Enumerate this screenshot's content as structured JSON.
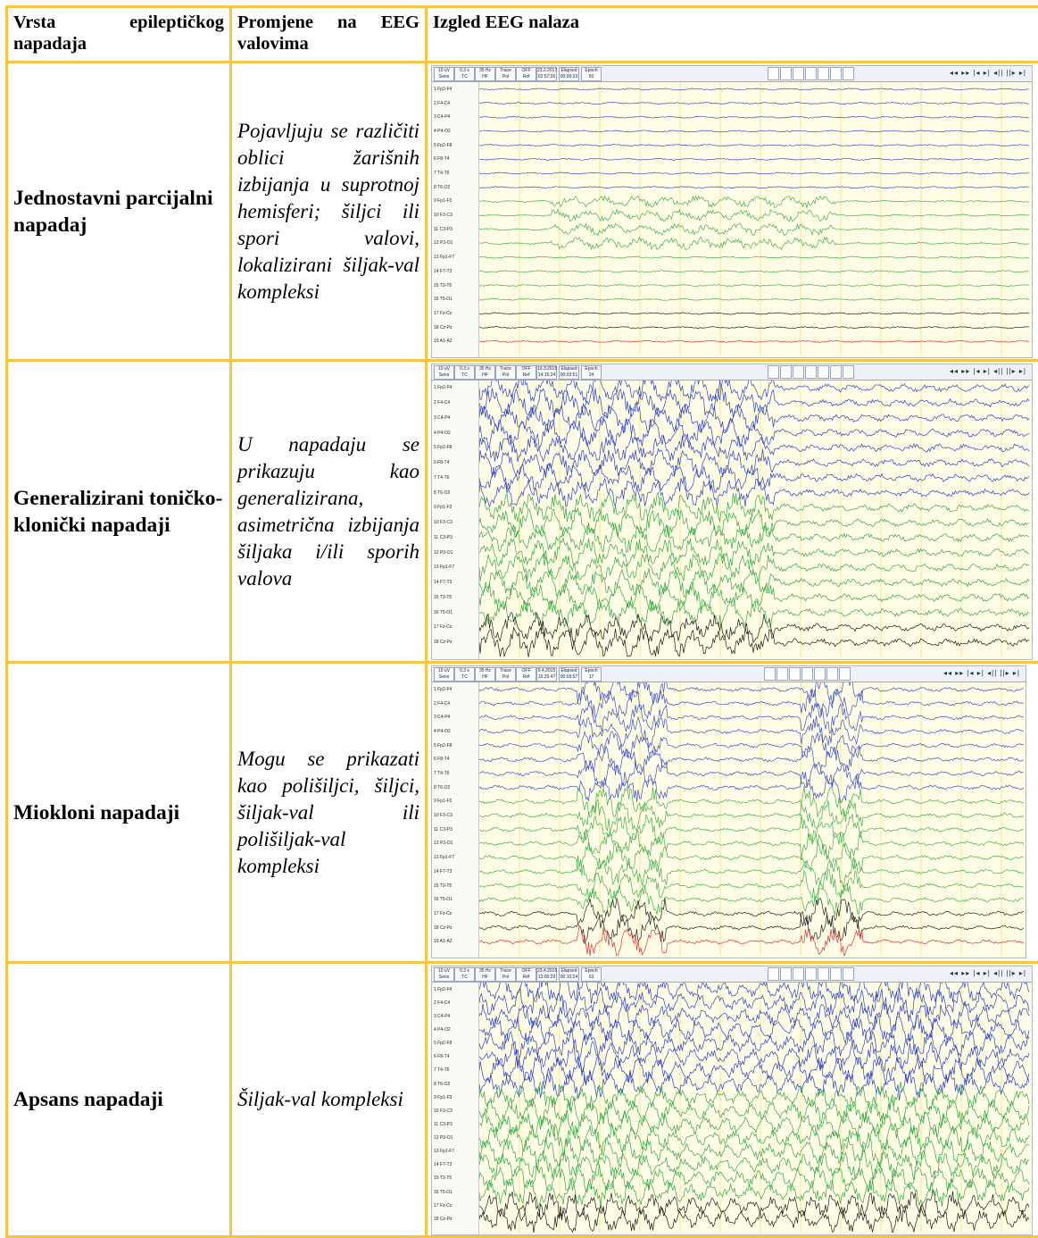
{
  "headers": {
    "col1": "Vrsta epileptičkog napadaja",
    "col2": "Promjene na EEG valovima",
    "col3": "Izgled EEG nalaza"
  },
  "rows": [
    {
      "type": "Jednostavni parcijalni napadaj",
      "change": "Pojavljuju se različiti oblici žarišnih izbijanja u suprotnoj hemisferi; šiljci ili spori valovi, lokalizirani šiljak-val kompleksi",
      "eeg": {
        "toolbar": [
          "10 uV",
          "0.3 s",
          "35 Hz",
          "Trace",
          "OFF",
          "23.2.2017",
          "Elapsed",
          "Epoch",
          "Sens",
          "TC",
          "HF",
          "Pol",
          "Ref",
          "02:57:35",
          "00:00:33",
          "50"
        ],
        "channels": [
          "1 Fp2-F4",
          "2 F4-C4",
          "3 C4-P4",
          "4 P4-O2",
          "5 Fp2-F8",
          "6 F8-T4",
          "7 T4-T6",
          "8 T6-O2",
          "9 Fp1-F3",
          "10 F3-C3",
          "11 C3-P3",
          "12 P3-O1",
          "13 Fp1-F7",
          "14 F7-T3",
          "15 T3-T5",
          "16 T5-O1",
          "17 Fz-Cz",
          "18 Cz-Pz",
          "19 A1-A2"
        ],
        "colors": [
          "#3a4fcf",
          "#3a4fcf",
          "#3a4fcf",
          "#3a4fcf",
          "#3a4fcf",
          "#3a4fcf",
          "#3a4fcf",
          "#3a4fcf",
          "#3fb04a",
          "#3fb04a",
          "#3fb04a",
          "#3fb04a",
          "#3fb04a",
          "#3fb04a",
          "#3fb04a",
          "#3fb04a",
          "#222222",
          "#222222",
          "#e03030"
        ],
        "amplitude": 3
      }
    },
    {
      "type": "Generalizirani toničko-klonički napadaji",
      "change": "U napadaju se prikazuju kao generalizirana, asimetrična izbijanja šiljaka i/ili sporih valova",
      "eeg": {
        "toolbar": [
          "10 uV",
          "0.3 s",
          "35 Hz",
          "Trace",
          "OFF",
          "19.3.2015",
          "Elapsed",
          "Epoch",
          "Sens",
          "TC",
          "HF",
          "Pol",
          "Ref",
          "14:15:24",
          "00:03:51",
          "24"
        ],
        "channels": [
          "1 Fp2-F4",
          "2 F4-C4",
          "3 C4-P4",
          "4 P4-O2",
          "5 Fp2-F8",
          "6 F8-T4",
          "7 T4-T6",
          "8 T6-O2",
          "9 Fp1-F3",
          "10 F3-C3",
          "11 C3-P3",
          "12 P3-O1",
          "13 Fp1-F7",
          "14 F7-T3",
          "15 T3-T5",
          "16 T5-O1",
          "17 Fz-Cz",
          "18 Cz-Pz"
        ],
        "colors": [
          "#2a3fcf",
          "#2a3fcf",
          "#2a3fcf",
          "#2a3fcf",
          "#2a3fcf",
          "#2a3fcf",
          "#2a3fcf",
          "#2a3fcf",
          "#2fa840",
          "#2fa840",
          "#2fa840",
          "#2fa840",
          "#2fa840",
          "#2fa840",
          "#2fa840",
          "#2fa840",
          "#1a1a1a",
          "#1a1a1a"
        ],
        "amplitude": 12
      }
    },
    {
      "type": "Miokloni napadaji",
      "change": "Mogu se prikazati kao polišiljci, šiljci, šiljak-val ili polišiljak-val kompleksi",
      "eeg": {
        "toolbar": [
          "10 uV",
          "0.3 s",
          "35 Hz",
          "Trace",
          "OFF",
          "9.4.2015",
          "Elapsed",
          "Epoch",
          "Sens",
          "TC",
          "HF",
          "Pol",
          "Ref",
          "15:25:47",
          "00:03:57",
          "17"
        ],
        "channels": [
          "1 Fp2-F4",
          "2 F4-C4",
          "3 C4-P4",
          "4 P4-O2",
          "5 Fp2-F8",
          "6 F8-T4",
          "7 T4-T6",
          "8 T6-O2",
          "9 Fp1-F3",
          "10 F3-C3",
          "11 C3-P3",
          "12 P3-O1",
          "13 Fp1-F7",
          "14 F7-T3",
          "15 T3-T5",
          "16 T5-O1",
          "17 Fz-Cz",
          "18 Cz-Pz",
          "19 A1-A2"
        ],
        "colors": [
          "#3a4fcf",
          "#3a4fcf",
          "#3a4fcf",
          "#3a4fcf",
          "#3a4fcf",
          "#3a4fcf",
          "#3a4fcf",
          "#3a4fcf",
          "#3fb04a",
          "#3fb04a",
          "#3fb04a",
          "#3fb04a",
          "#3fb04a",
          "#3fb04a",
          "#3fb04a",
          "#3fb04a",
          "#222222",
          "#222222",
          "#e03030"
        ],
        "amplitude": 7
      }
    },
    {
      "type": "Apsans napadaji",
      "change": "Šiljak-val kompleksi",
      "eeg": {
        "toolbar": [
          "10 uV",
          "0.3 s",
          "35 Hz",
          "Trace",
          "OFF",
          "23.4.2015",
          "Elapsed",
          "Epoch",
          "Sens",
          "TC",
          "HF",
          "Pol",
          "Ref",
          "13:05:29",
          "00:10:24",
          "63"
        ],
        "channels": [
          "1 Fp2-F4",
          "2 F4-C4",
          "3 C4-P4",
          "4 P4-O2",
          "5 Fp2-F8",
          "6 F8-T4",
          "7 T4-T6",
          "8 T6-O2",
          "9 Fp1-F3",
          "10 F3-C3",
          "11 C3-P3",
          "12 P3-O1",
          "13 Fp1-F7",
          "14 F7-T3",
          "15 T3-T5",
          "16 T5-O1",
          "17 Fz-Cz",
          "18 Cz-Pz"
        ],
        "colors": [
          "#2a3fcf",
          "#2a3fcf",
          "#2a3fcf",
          "#2a3fcf",
          "#2a3fcf",
          "#2a3fcf",
          "#2a3fcf",
          "#2a3fcf",
          "#2fa840",
          "#2fa840",
          "#2fa840",
          "#2fa840",
          "#2fa840",
          "#2fa840",
          "#2fa840",
          "#2fa840",
          "#1a1a1a",
          "#1a1a1a"
        ],
        "amplitude": 14
      }
    }
  ]
}
